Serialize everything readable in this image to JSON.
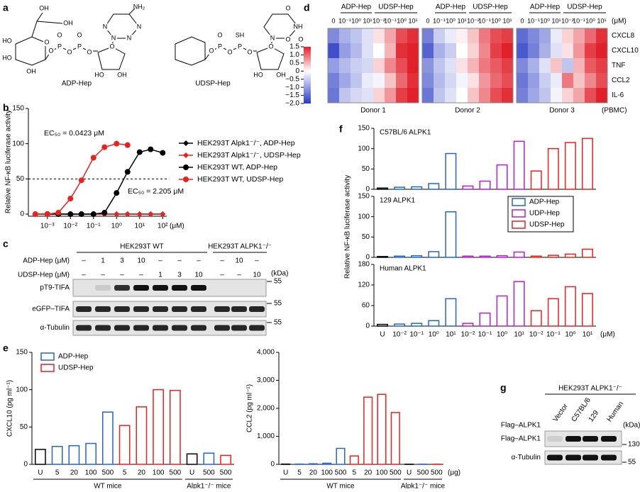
{
  "panel_labels": [
    "a",
    "b",
    "c",
    "d",
    "e",
    "f",
    "g"
  ],
  "a": {
    "molecules": [
      {
        "name": "ADP-Hep",
        "atoms": [
          "OH",
          "OH",
          "HO",
          "HO",
          "OH",
          "O",
          "O",
          "O",
          "P",
          "O",
          "P",
          "O",
          "O",
          "O",
          "HO",
          "OH",
          "N",
          "N",
          "N",
          "N",
          "NH₂"
        ]
      },
      {
        "name": "UDSP-Hep",
        "atoms": [
          "O",
          "SH",
          "O",
          "P",
          "O",
          "P",
          "O",
          "O",
          "O",
          "HO",
          "OH",
          "N",
          "NH",
          "O",
          "O"
        ]
      }
    ]
  },
  "c": {
    "header_wt": "HEK293T WT",
    "header_ko": "HEK293T ALPK1⁻/⁻",
    "unit": "(kDa)",
    "rows": [
      {
        "label": "ADP-Hep (μM)",
        "lanes": [
          "–",
          "1",
          "3",
          "10",
          "–",
          "–",
          "–",
          "–",
          "10",
          "–"
        ]
      },
      {
        "label": "UDSP-Hep (μM)",
        "lanes": [
          "–",
          "–",
          "–",
          "–",
          "1",
          "3",
          "10",
          "–",
          "–",
          "10"
        ]
      }
    ],
    "blots": [
      {
        "label": "pT9-TIFA",
        "marker": "55"
      },
      {
        "label": "eGFP–TIFA",
        "marker": "55"
      },
      {
        "label": "α-Tubulin",
        "marker": "55"
      }
    ]
  },
  "g": {
    "header": "HEK293T ALPK1⁻/⁻",
    "column_title": "Flag–ALPK1",
    "columns": [
      "Vector",
      "C57BL/6",
      "129",
      "Human"
    ],
    "unit": "(kDa)",
    "blots": [
      {
        "label": "Flag–ALPK1",
        "marker": "130"
      },
      {
        "label": "α-Tubulin",
        "marker": "55"
      }
    ]
  },
  "chart_data": [
    {
      "type": "line",
      "y_label": "Relative NF-κB luciferase activity",
      "x_unit": "(μM)",
      "log_x": true,
      "x": [
        0.0003,
        0.001,
        0.003,
        0.01,
        0.03,
        0.1,
        0.3,
        1,
        3,
        10,
        30,
        100
      ],
      "xlim": [
        0.00015,
        150
      ],
      "ylim": [
        -3,
        150
      ],
      "xticks": [
        {
          "value": 0.001,
          "label": "10⁻³"
        },
        {
          "value": 0.01,
          "label": "10⁻²"
        },
        {
          "value": 0.1,
          "label": "10⁻¹"
        },
        {
          "value": 1,
          "label": "10⁰"
        },
        {
          "value": 10,
          "label": "10¹"
        },
        {
          "value": 100,
          "label": "10²"
        }
      ],
      "yticks": [
        0,
        50,
        100,
        150
      ],
      "hline": 50,
      "series": [
        {
          "name": "HEK293T Alpk1⁻/⁻, ADP-Hep",
          "color": "#000000",
          "marker": "diamond",
          "values": [
            0,
            0,
            0,
            0,
            0,
            0,
            0,
            0,
            0,
            0,
            0,
            0
          ]
        },
        {
          "name": "HEK293T Alpk1⁻/⁻, UDSP-Hep",
          "color": "#e8221f",
          "marker": "diamond",
          "values": [
            0,
            0,
            0,
            0,
            0,
            0,
            0,
            0,
            0,
            0,
            0,
            0
          ]
        },
        {
          "name": "HEK293T WT, ADP-Hep",
          "color": "#000000",
          "marker": "circle",
          "values": [
            null,
            0,
            0,
            0,
            0,
            0,
            2,
            30,
            60,
            88,
            92,
            87
          ]
        },
        {
          "name": "HEK293T WT, UDSP-Hep",
          "color": "#e8221f",
          "marker": "circle",
          "values": [
            0,
            0,
            2,
            22,
            48,
            80,
            95,
            100,
            98,
            null,
            null,
            null
          ]
        }
      ],
      "annotations": [
        {
          "text": "EC₅₀ = 0.0423 μM",
          "color": "#e8221f"
        },
        {
          "text": "EC₅₀ = 2.205 μM",
          "color": "#000000"
        }
      ]
    },
    {
      "type": "heatmap",
      "columns": [
        "0",
        "10⁻¹",
        "10⁰",
        "10¹",
        "10⁻²",
        "10⁻¹",
        "10⁰",
        "10¹"
      ],
      "x_unit": "(μM)",
      "groups": [
        "ADP-Hep",
        "UDSP-Hep"
      ],
      "rows": [
        "CXCL8",
        "CXCL10",
        "TNF",
        "CCL2",
        "IL-6"
      ],
      "sample_label": "(PBMC)",
      "colors": [
        "#2a3cc4",
        "#ffffff",
        "#e0202a"
      ],
      "zlim": [
        -2,
        1.5
      ],
      "zticks": [
        1.5,
        {
          "value": 1,
          "label": "1.0"
        },
        0.5,
        0,
        {
          "value": -0.5,
          "label": "−0.5"
        },
        {
          "value": -1,
          "label": "−1.0"
        },
        {
          "value": -1.5,
          "label": "−1.5"
        },
        {
          "value": -2,
          "label": "−2.0"
        }
      ],
      "panels": [
        {
          "name": "Donor 1",
          "values": [
            [
              -1.2,
              -0.8,
              -0.6,
              -0.3,
              0.2,
              0.6,
              1.2,
              1.4
            ],
            [
              -1.8,
              -1.0,
              -0.7,
              -0.3,
              0.0,
              0.5,
              1.4,
              1.6
            ],
            [
              -1.0,
              -0.7,
              -0.5,
              -0.4,
              0.3,
              0.8,
              1.2,
              1.5
            ],
            [
              -1.3,
              -0.9,
              -0.6,
              -0.2,
              -0.1,
              0.4,
              1.0,
              1.4
            ],
            [
              -1.4,
              -0.6,
              -0.4,
              -0.3,
              0.3,
              0.7,
              1.3,
              1.5
            ]
          ]
        },
        {
          "name": "Donor 2",
          "values": [
            [
              -1.3,
              -0.5,
              -0.2,
              0.1,
              0.4,
              0.9,
              1.2,
              1.3
            ],
            [
              -1.6,
              -0.8,
              -0.5,
              0.0,
              0.3,
              0.8,
              1.3,
              1.5
            ],
            [
              -1.1,
              -0.6,
              -0.3,
              0.2,
              0.5,
              0.9,
              1.1,
              1.3
            ],
            [
              -1.2,
              -0.7,
              -0.4,
              -0.1,
              0.2,
              0.7,
              1.0,
              1.2
            ],
            [
              -1.4,
              -0.6,
              -0.3,
              0.0,
              0.4,
              0.8,
              1.2,
              1.4
            ]
          ]
        },
        {
          "name": "Donor 3",
          "values": [
            [
              -1.5,
              -1.2,
              -0.9,
              -0.2,
              0.3,
              0.6,
              1.0,
              1.4
            ],
            [
              -1.7,
              -1.3,
              -0.8,
              -0.3,
              0.2,
              0.7,
              1.3,
              1.5
            ],
            [
              -1.2,
              -0.8,
              -0.3,
              0.4,
              -0.6,
              0.5,
              1.1,
              1.3
            ],
            [
              -1.4,
              -1.0,
              -0.5,
              -0.2,
              0.9,
              0.4,
              0.8,
              1.2
            ],
            [
              -1.3,
              -0.9,
              -0.6,
              -0.1,
              0.3,
              0.6,
              1.2,
              1.5
            ]
          ]
        }
      ]
    },
    {
      "type": "bar",
      "y_label": "CXCL10 (pg ml⁻¹)",
      "categories": [
        "U",
        "5",
        "20",
        "100",
        "500",
        "5",
        "20",
        "100",
        "500",
        "U",
        "500",
        "500"
      ],
      "values": [
        20,
        24,
        25,
        28,
        70,
        52,
        77,
        100,
        99,
        14,
        15,
        12
      ],
      "colors": [
        "#000000",
        "#2464c8",
        "#2464c8",
        "#2464c8",
        "#2464c8",
        "#e8221f",
        "#e8221f",
        "#e8221f",
        "#e8221f",
        "#000000",
        "#2464c8",
        "#e8221f"
      ],
      "ylim": [
        0,
        150
      ],
      "yticks": [
        0,
        50,
        100,
        150
      ],
      "group_labels": [
        "WT mice",
        "Alpk1⁻/⁻ mice"
      ],
      "legend": [
        {
          "name": "ADP-Hep",
          "color": "#2464c8"
        },
        {
          "name": "UDSP-Hep",
          "color": "#e8221f"
        }
      ]
    },
    {
      "type": "bar",
      "y_label": "CCL2 (pg ml⁻¹)",
      "x_unit": "(μg)",
      "categories": [
        "U",
        "5",
        "20",
        "100",
        "500",
        "5",
        "20",
        "100",
        "500",
        "U",
        "500",
        "500"
      ],
      "values": [
        10,
        10,
        20,
        40,
        570,
        300,
        2400,
        2500,
        1850,
        5,
        5,
        5
      ],
      "colors": [
        "#000000",
        "#2464c8",
        "#2464c8",
        "#2464c8",
        "#2464c8",
        "#e8221f",
        "#e8221f",
        "#e8221f",
        "#e8221f",
        "#000000",
        "#2464c8",
        "#e8221f"
      ],
      "ylim": [
        0,
        4000
      ],
      "yticks": [
        0,
        {
          "value": 1000,
          "label": "1,000"
        },
        {
          "value": 2000,
          "label": "2,000"
        },
        {
          "value": 3000,
          "label": "3,000"
        },
        {
          "value": 4000,
          "label": "4,000"
        }
      ],
      "group_labels": [
        "WT mice",
        "Alpk1⁻/⁻ mice"
      ]
    },
    {
      "type": "bar",
      "title": "C57BL/6 ALPK1",
      "values": [
        3,
        5,
        6,
        14,
        88,
        8,
        20,
        60,
        118,
        45,
        100,
        115,
        125
      ],
      "colors": [
        "#000000",
        "#2464c8",
        "#2464c8",
        "#2464c8",
        "#2464c8",
        "#b020d0",
        "#b020d0",
        "#b020d0",
        "#b020d0",
        "#e8221f",
        "#e8221f",
        "#e8221f",
        "#e8221f"
      ],
      "ylim": [
        0,
        150
      ],
      "yticks": [
        0,
        50,
        100,
        150
      ]
    },
    {
      "type": "bar",
      "title": "129 ALPK1",
      "y_label": "Relative NF-κB luciferase activity",
      "values": [
        2,
        3,
        4,
        14,
        112,
        3,
        3,
        4,
        13,
        3,
        5,
        8,
        20
      ],
      "colors": [
        "#000000",
        "#2464c8",
        "#2464c8",
        "#2464c8",
        "#2464c8",
        "#b020d0",
        "#b020d0",
        "#b020d0",
        "#b020d0",
        "#e8221f",
        "#e8221f",
        "#e8221f",
        "#e8221f"
      ],
      "ylim": [
        0,
        150
      ],
      "yticks": [
        0,
        50,
        100,
        150
      ],
      "legend": [
        {
          "name": "ADP-Hep",
          "color": "#2464c8"
        },
        {
          "name": "UDP-Hep",
          "color": "#b020d0"
        },
        {
          "name": "UDSP-Hep",
          "color": "#e8221f"
        }
      ]
    },
    {
      "type": "bar",
      "title": "Human ALPK1",
      "x_unit": "(μM)",
      "categories": [
        "U",
        "10⁻²",
        "10⁻¹",
        "10⁰",
        "10¹",
        "10⁻²",
        "10⁻¹",
        "10⁰",
        "10¹",
        "10⁻²",
        "10⁻¹",
        "10⁰",
        "10¹"
      ],
      "values": [
        5,
        6,
        8,
        16,
        80,
        8,
        38,
        88,
        130,
        45,
        80,
        115,
        95
      ],
      "colors": [
        "#000000",
        "#2464c8",
        "#2464c8",
        "#2464c8",
        "#2464c8",
        "#b020d0",
        "#b020d0",
        "#b020d0",
        "#b020d0",
        "#e8221f",
        "#e8221f",
        "#e8221f",
        "#e8221f"
      ],
      "ylim": [
        0,
        180
      ],
      "yticks": [
        0,
        60,
        120,
        180
      ]
    }
  ]
}
